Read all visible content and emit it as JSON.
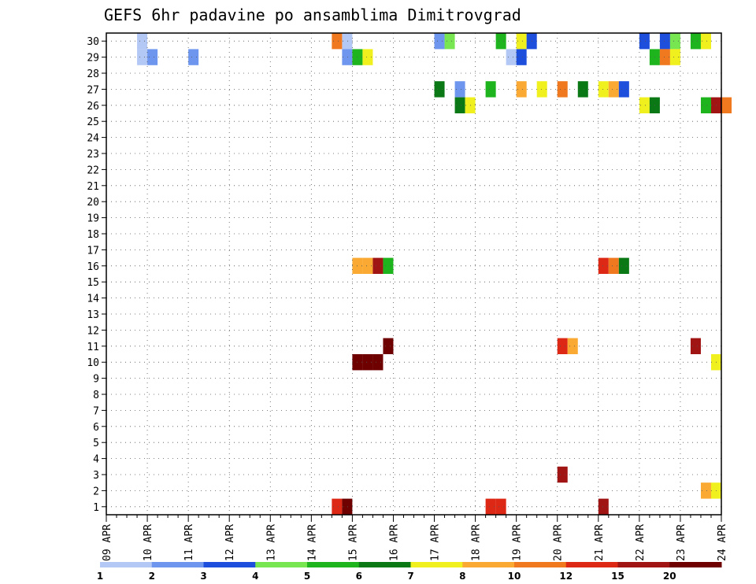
{
  "title": "GEFS 6hr padavine po ansamblima Dimitrovgrad",
  "chart_data": {
    "type": "heatmap",
    "title": "GEFS 6hr padavine po ansamblima Dimitrovgrad",
    "xlabel": "",
    "ylabel": "",
    "x_axis": {
      "type": "date",
      "step": "6 hours",
      "start": "09 APR 00z",
      "end": "24 APR 00z",
      "tick_labels": [
        "09 APR",
        "10 APR",
        "11 APR",
        "12 APR",
        "13 APR",
        "14 APR",
        "15 APR",
        "16 APR",
        "17 APR",
        "18 APR",
        "19 APR",
        "20 APR",
        "21 APR",
        "22 APR",
        "23 APR",
        "24 APR"
      ]
    },
    "y_axis": {
      "label": "",
      "range": [
        0,
        30
      ],
      "tick_labels": [
        "1",
        "2",
        "3",
        "4",
        "5",
        "6",
        "7",
        "8",
        "9",
        "10",
        "11",
        "12",
        "13",
        "14",
        "15",
        "16",
        "17",
        "18",
        "19",
        "20",
        "21",
        "22",
        "23",
        "24",
        "25",
        "26",
        "27",
        "28",
        "29",
        "30"
      ]
    },
    "grid": true,
    "colorbar": {
      "placement": "bottom",
      "labels": [
        "1",
        "2",
        "3",
        "4",
        "5",
        "6",
        "7",
        "8",
        "10",
        "12",
        "15",
        "20"
      ],
      "colors": [
        "#b4c8f5",
        "#6e96ee",
        "#1e4edc",
        "#78e650",
        "#1eb41e",
        "#0a7814",
        "#f0f01e",
        "#faaa32",
        "#f0781e",
        "#dc2814",
        "#a01414",
        "#6e0000"
      ]
    },
    "values_note_units": "mm",
    "cells": [
      {
        "member": 30,
        "time": "09 APR 18z",
        "value": 1
      },
      {
        "member": 30,
        "time": "14 APR 18z",
        "value": 1
      },
      {
        "member": 30,
        "time": "14 APR 12z",
        "value": 10
      },
      {
        "member": 30,
        "time": "17 APR 00z",
        "value": 2
      },
      {
        "member": 30,
        "time": "17 APR 06z",
        "value": 4
      },
      {
        "member": 30,
        "time": "18 APR 12z",
        "value": 5
      },
      {
        "member": 30,
        "time": "19 APR 00z",
        "value": 7
      },
      {
        "member": 30,
        "time": "19 APR 06z",
        "value": 3
      },
      {
        "member": 30,
        "time": "22 APR 00z",
        "value": 3
      },
      {
        "member": 30,
        "time": "22 APR 12z",
        "value": 3
      },
      {
        "member": 30,
        "time": "22 APR 18z",
        "value": 4
      },
      {
        "member": 30,
        "time": "23 APR 06z",
        "value": 5
      },
      {
        "member": 30,
        "time": "23 APR 12z",
        "value": 7
      },
      {
        "member": 29,
        "time": "09 APR 18z",
        "value": 1
      },
      {
        "member": 29,
        "time": "10 APR 00z",
        "value": 2
      },
      {
        "member": 29,
        "time": "11 APR 00z",
        "value": 2
      },
      {
        "member": 29,
        "time": "14 APR 18z",
        "value": 2
      },
      {
        "member": 29,
        "time": "15 APR 00z",
        "value": 5
      },
      {
        "member": 29,
        "time": "15 APR 06z",
        "value": 7
      },
      {
        "member": 29,
        "time": "18 APR 18z",
        "value": 1
      },
      {
        "member": 29,
        "time": "19 APR 00z",
        "value": 3
      },
      {
        "member": 29,
        "time": "22 APR 06z",
        "value": 5
      },
      {
        "member": 29,
        "time": "22 APR 12z",
        "value": 10
      },
      {
        "member": 29,
        "time": "22 APR 18z",
        "value": 7
      },
      {
        "member": 27,
        "time": "17 APR 00z",
        "value": 6
      },
      {
        "member": 27,
        "time": "17 APR 12z",
        "value": 2
      },
      {
        "member": 27,
        "time": "18 APR 06z",
        "value": 5
      },
      {
        "member": 27,
        "time": "19 APR 00z",
        "value": 8
      },
      {
        "member": 27,
        "time": "19 APR 12z",
        "value": 7
      },
      {
        "member": 27,
        "time": "20 APR 00z",
        "value": 10
      },
      {
        "member": 27,
        "time": "20 APR 12z",
        "value": 6
      },
      {
        "member": 27,
        "time": "21 APR 00z",
        "value": 7
      },
      {
        "member": 27,
        "time": "21 APR 06z",
        "value": 8
      },
      {
        "member": 27,
        "time": "21 APR 12z",
        "value": 3
      },
      {
        "member": 26,
        "time": "17 APR 12z",
        "value": 6
      },
      {
        "member": 26,
        "time": "17 APR 18z",
        "value": 7
      },
      {
        "member": 26,
        "time": "22 APR 00z",
        "value": 7
      },
      {
        "member": 26,
        "time": "22 APR 06z",
        "value": 6
      },
      {
        "member": 26,
        "time": "23 APR 12z",
        "value": 5
      },
      {
        "member": 26,
        "time": "23 APR 18z",
        "value": 15
      },
      {
        "member": 26,
        "time": "24 APR 00z",
        "value": 10
      },
      {
        "member": 16,
        "time": "15 APR 00z",
        "value": 8
      },
      {
        "member": 16,
        "time": "15 APR 06z",
        "value": 8
      },
      {
        "member": 16,
        "time": "15 APR 12z",
        "value": 15
      },
      {
        "member": 16,
        "time": "15 APR 18z",
        "value": 5
      },
      {
        "member": 16,
        "time": "21 APR 00z",
        "value": 12
      },
      {
        "member": 16,
        "time": "21 APR 06z",
        "value": 10
      },
      {
        "member": 16,
        "time": "21 APR 12z",
        "value": 6
      },
      {
        "member": 11,
        "time": "15 APR 18z",
        "value": 20
      },
      {
        "member": 11,
        "time": "20 APR 00z",
        "value": 12
      },
      {
        "member": 11,
        "time": "20 APR 06z",
        "value": 8
      },
      {
        "member": 11,
        "time": "23 APR 06z",
        "value": 15
      },
      {
        "member": 10,
        "time": "15 APR 00z",
        "value": 20
      },
      {
        "member": 10,
        "time": "15 APR 06z",
        "value": 20
      },
      {
        "member": 10,
        "time": "15 APR 12z",
        "value": 20
      },
      {
        "member": 10,
        "time": "23 APR 18z",
        "value": 7
      },
      {
        "member": 3,
        "time": "20 APR 00z",
        "value": 15
      },
      {
        "member": 2,
        "time": "23 APR 12z",
        "value": 8
      },
      {
        "member": 2,
        "time": "23 APR 18z",
        "value": 7
      },
      {
        "member": 1,
        "time": "14 APR 12z",
        "value": 12
      },
      {
        "member": 1,
        "time": "14 APR 18z",
        "value": 20
      },
      {
        "member": 1,
        "time": "18 APR 06z",
        "value": 12
      },
      {
        "member": 1,
        "time": "18 APR 12z",
        "value": 12
      },
      {
        "member": 1,
        "time": "21 APR 00z",
        "value": 15
      }
    ]
  }
}
